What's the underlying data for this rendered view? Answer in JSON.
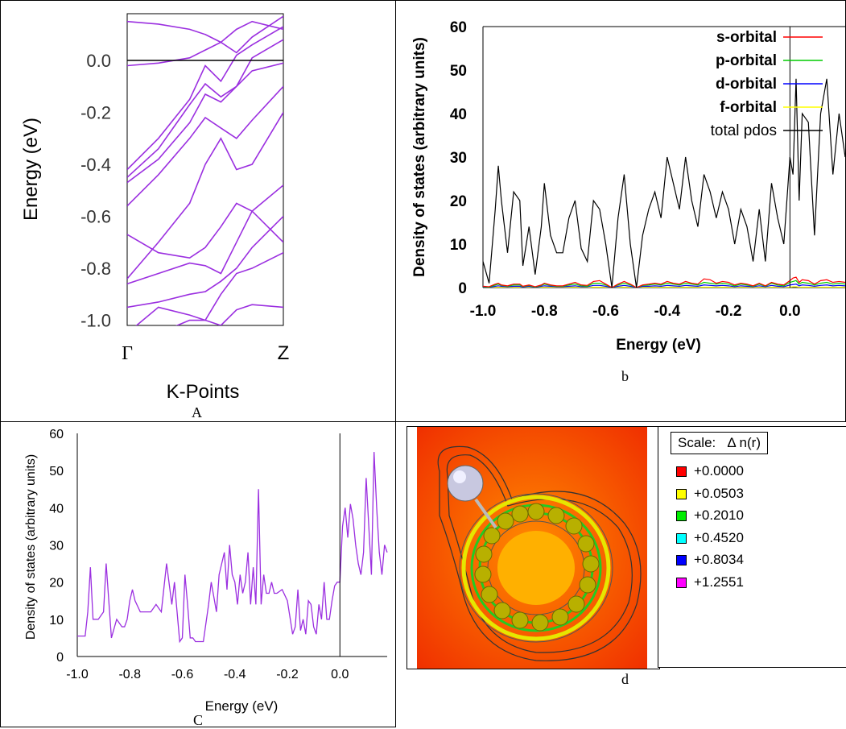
{
  "captions": {
    "a": "A",
    "b": "b",
    "c": "C",
    "d": "d"
  },
  "colors": {
    "band": "#9b2fe0",
    "pdos_c": "#9b2fe0",
    "s": "#ff0000",
    "p": "#00cc00",
    "d": "#0000ff",
    "f": "#ffff00",
    "total": "#000000"
  },
  "chart_data": [
    {
      "id": "band-structure",
      "type": "line",
      "xlabel": "K-Points",
      "ylabel": "Energy (eV)",
      "x_ticks": [
        "Γ",
        "Z"
      ],
      "ylim": [
        -1.02,
        0.18
      ],
      "y_ticks": [
        0.0,
        -0.2,
        -0.4,
        -0.6,
        -0.8,
        -1.0
      ],
      "y_tick_labels": [
        "0.0",
        "-0.2",
        "-0.4",
        "-0.6",
        "-0.8",
        "-1.0"
      ],
      "fermi_level": 0.0,
      "x": [
        0,
        0.2,
        0.4,
        0.5,
        0.6,
        0.7,
        0.8,
        1.0
      ],
      "series": [
        {
          "values": [
            0.15,
            0.14,
            0.12,
            0.1,
            0.07,
            0.03,
            0.09,
            0.17
          ]
        },
        {
          "values": [
            -0.02,
            -0.01,
            0.01,
            0.04,
            0.07,
            0.12,
            0.15,
            0.12
          ]
        },
        {
          "values": [
            -0.42,
            -0.3,
            -0.15,
            -0.02,
            -0.08,
            0.02,
            0.06,
            0.13
          ]
        },
        {
          "values": [
            -0.45,
            -0.34,
            -0.17,
            -0.09,
            -0.14,
            -0.1,
            0.01,
            0.08
          ]
        },
        {
          "values": [
            -0.47,
            -0.38,
            -0.24,
            -0.13,
            -0.16,
            -0.1,
            -0.04,
            -0.01
          ]
        },
        {
          "values": [
            -0.56,
            -0.44,
            -0.3,
            -0.22,
            -0.26,
            -0.3,
            -0.23,
            -0.1
          ]
        },
        {
          "values": [
            -0.84,
            -0.7,
            -0.55,
            -0.4,
            -0.3,
            -0.42,
            -0.4,
            -0.2
          ]
        },
        {
          "values": [
            -0.67,
            -0.74,
            -0.76,
            -0.72,
            -0.64,
            -0.55,
            -0.58,
            -0.7
          ]
        },
        {
          "values": [
            -0.86,
            -0.82,
            -0.78,
            -0.79,
            -0.82,
            -0.7,
            -0.58,
            -0.48
          ]
        },
        {
          "values": [
            -0.95,
            -0.93,
            -0.9,
            -0.89,
            -0.85,
            -0.8,
            -0.72,
            -0.6
          ]
        },
        {
          "values": [
            -1.05,
            -0.95,
            -0.98,
            -1.0,
            -0.9,
            -0.82,
            -0.8,
            -0.74
          ]
        },
        {
          "values": [
            -1.05,
            -1.05,
            -1.0,
            -1.0,
            -1.02,
            -0.96,
            -0.94,
            -0.95
          ]
        }
      ]
    },
    {
      "id": "pdos-orbitals",
      "type": "line",
      "xlabel": "Energy (eV)",
      "ylabel": "Density of states (arbitrary units)",
      "xlim": [
        -1.0,
        0.18
      ],
      "ylim": [
        0,
        60
      ],
      "x_ticks": [
        -1.0,
        -0.8,
        -0.6,
        -0.4,
        -0.2,
        0.0
      ],
      "x_tick_labels": [
        "-1.0",
        "-0.8",
        "-0.6",
        "-0.4",
        "-0.2",
        "0.0"
      ],
      "y_ticks": [
        0,
        10,
        20,
        30,
        40,
        50,
        60
      ],
      "legend": [
        "s-orbital",
        "p-orbital",
        "d-orbital",
        "f-orbital",
        "total pdos"
      ],
      "legend_position": "top-right",
      "fermi_level": 0.0,
      "x": [
        -1.0,
        -0.98,
        -0.96,
        -0.95,
        -0.94,
        -0.92,
        -0.9,
        -0.88,
        -0.87,
        -0.85,
        -0.83,
        -0.81,
        -0.8,
        -0.78,
        -0.76,
        -0.74,
        -0.72,
        -0.7,
        -0.68,
        -0.66,
        -0.64,
        -0.62,
        -0.6,
        -0.58,
        -0.56,
        -0.54,
        -0.52,
        -0.5,
        -0.48,
        -0.46,
        -0.44,
        -0.42,
        -0.4,
        -0.38,
        -0.36,
        -0.34,
        -0.32,
        -0.3,
        -0.28,
        -0.26,
        -0.24,
        -0.22,
        -0.2,
        -0.18,
        -0.16,
        -0.14,
        -0.12,
        -0.1,
        -0.08,
        -0.06,
        -0.04,
        -0.02,
        0.0,
        0.01,
        0.02,
        0.03,
        0.04,
        0.06,
        0.08,
        0.1,
        0.12,
        0.14,
        0.16,
        0.18
      ],
      "series": [
        {
          "name": "total pdos",
          "values": [
            6,
            1,
            18,
            28,
            20,
            8,
            22,
            20,
            5,
            14,
            3,
            14,
            24,
            12,
            8,
            8,
            16,
            20,
            9,
            6,
            20,
            18,
            10,
            0,
            16,
            26,
            10,
            0,
            12,
            18,
            22,
            16,
            30,
            24,
            18,
            30,
            20,
            14,
            26,
            22,
            16,
            22,
            18,
            10,
            18,
            14,
            6,
            18,
            6,
            24,
            16,
            10,
            30,
            26,
            48,
            20,
            40,
            38,
            12,
            40,
            48,
            26,
            40,
            30
          ]
        },
        {
          "name": "s-orbital",
          "values": [
            0.3,
            0.2,
            0.8,
            1,
            0.6,
            0.4,
            0.8,
            0.8,
            0.3,
            0.6,
            0.2,
            0.6,
            1,
            0.6,
            0.4,
            0.4,
            0.8,
            1.2,
            0.6,
            0.5,
            1.4,
            1.6,
            0.8,
            0,
            0.8,
            1.4,
            0.8,
            0,
            0.6,
            0.8,
            1,
            0.8,
            1.4,
            1,
            0.8,
            1.4,
            1,
            0.8,
            2,
            1.8,
            1,
            1.4,
            1.2,
            0.6,
            1,
            0.8,
            0.4,
            1,
            0.4,
            1.2,
            0.8,
            0.6,
            1.6,
            2.2,
            2.4,
            1.2,
            1.8,
            1.6,
            0.8,
            1.6,
            1.8,
            1.2,
            1.4,
            1.2
          ]
        },
        {
          "name": "p-orbital",
          "values": [
            0.2,
            0.1,
            0.6,
            0.8,
            0.5,
            0.3,
            0.6,
            0.6,
            0.2,
            0.5,
            0.1,
            0.5,
            0.8,
            0.5,
            0.3,
            0.3,
            0.6,
            0.8,
            0.4,
            0.3,
            1,
            1,
            0.6,
            0,
            0.6,
            1,
            0.6,
            0,
            0.5,
            0.6,
            0.8,
            0.6,
            1,
            0.8,
            0.6,
            1,
            0.8,
            0.6,
            1.2,
            1,
            0.8,
            1,
            0.8,
            0.4,
            0.8,
            0.6,
            0.3,
            0.8,
            0.3,
            1,
            0.6,
            0.4,
            1.2,
            1.4,
            1.6,
            0.8,
            1.2,
            1,
            0.6,
            1,
            1.2,
            0.8,
            1,
            0.8
          ]
        },
        {
          "name": "d-orbital",
          "values": [
            0.1,
            0.05,
            0.3,
            0.4,
            0.3,
            0.2,
            0.3,
            0.3,
            0.1,
            0.3,
            0.05,
            0.3,
            0.4,
            0.3,
            0.2,
            0.2,
            0.3,
            0.4,
            0.2,
            0.2,
            0.5,
            0.5,
            0.3,
            0,
            0.3,
            0.5,
            0.3,
            0,
            0.3,
            0.3,
            0.4,
            0.3,
            0.5,
            0.4,
            0.3,
            0.5,
            0.4,
            0.3,
            0.6,
            0.5,
            0.4,
            0.5,
            0.4,
            0.2,
            0.4,
            0.3,
            0.2,
            0.4,
            0.2,
            0.5,
            0.3,
            0.2,
            0.6,
            0.7,
            0.8,
            0.4,
            0.6,
            0.5,
            0.3,
            0.5,
            0.6,
            0.4,
            0.5,
            0.4
          ]
        },
        {
          "name": "f-orbital",
          "values": [
            0,
            0,
            0.1,
            0.1,
            0.1,
            0,
            0.1,
            0.1,
            0,
            0.1,
            0,
            0.1,
            0.1,
            0.1,
            0,
            0,
            0.1,
            0.1,
            0.1,
            0,
            0.1,
            0.1,
            0.1,
            0,
            0.1,
            0.1,
            0.1,
            0,
            0.1,
            0.1,
            0.1,
            0.1,
            0.1,
            0.1,
            0.1,
            0.1,
            0.1,
            0.1,
            0.1,
            0.1,
            0.1,
            0.1,
            0.1,
            0,
            0.1,
            0.1,
            0,
            0.1,
            0,
            0.1,
            0.1,
            0,
            0.1,
            0.2,
            0.2,
            0.1,
            0.1,
            0.1,
            0.1,
            0.1,
            0.1,
            0.1,
            0.1,
            0.1
          ]
        }
      ]
    },
    {
      "id": "pdos-total",
      "type": "line",
      "xlabel": "Energy (eV)",
      "ylabel": "Density of states (arbitrary units)",
      "xlim": [
        -1.0,
        0.18
      ],
      "ylim": [
        0,
        60
      ],
      "x_ticks": [
        -1.0,
        -0.8,
        -0.6,
        -0.4,
        -0.2,
        0.0
      ],
      "x_tick_labels": [
        "-1.0",
        "-0.8",
        "-0.6",
        "-0.4",
        "-0.2",
        "0.0"
      ],
      "y_ticks": [
        0,
        10,
        20,
        30,
        40,
        50,
        60
      ],
      "fermi_level": 0.0,
      "x": [
        -1.0,
        -0.97,
        -0.96,
        -0.95,
        -0.94,
        -0.92,
        -0.9,
        -0.89,
        -0.88,
        -0.87,
        -0.85,
        -0.83,
        -0.82,
        -0.81,
        -0.8,
        -0.79,
        -0.78,
        -0.76,
        -0.74,
        -0.72,
        -0.7,
        -0.68,
        -0.66,
        -0.64,
        -0.63,
        -0.62,
        -0.61,
        -0.6,
        -0.59,
        -0.58,
        -0.57,
        -0.56,
        -0.55,
        -0.54,
        -0.52,
        -0.5,
        -0.49,
        -0.48,
        -0.47,
        -0.46,
        -0.44,
        -0.43,
        -0.42,
        -0.41,
        -0.4,
        -0.39,
        -0.38,
        -0.37,
        -0.36,
        -0.35,
        -0.34,
        -0.33,
        -0.32,
        -0.31,
        -0.3,
        -0.29,
        -0.28,
        -0.27,
        -0.26,
        -0.25,
        -0.24,
        -0.22,
        -0.2,
        -0.18,
        -0.17,
        -0.16,
        -0.15,
        -0.14,
        -0.13,
        -0.12,
        -0.11,
        -0.1,
        -0.09,
        -0.08,
        -0.07,
        -0.06,
        -0.05,
        -0.04,
        -0.03,
        -0.02,
        -0.01,
        0.0,
        0.01,
        0.02,
        0.03,
        0.04,
        0.05,
        0.06,
        0.07,
        0.08,
        0.09,
        0.1,
        0.11,
        0.12,
        0.13,
        0.14,
        0.15,
        0.16,
        0.17,
        0.18
      ],
      "values": [
        5.5,
        5.5,
        12,
        24,
        10,
        10,
        12,
        25,
        15,
        5,
        10,
        8,
        8,
        10,
        15,
        18,
        15,
        12,
        12,
        12,
        14,
        12,
        25,
        14,
        20,
        12,
        4,
        5,
        22,
        14,
        5,
        5,
        4,
        4,
        4,
        14,
        20,
        16,
        12,
        22,
        28,
        18,
        30,
        22,
        20,
        14,
        22,
        17,
        20,
        28,
        14,
        24,
        14,
        45,
        14,
        22,
        17,
        17,
        20,
        17,
        17,
        18,
        15,
        6,
        8,
        18,
        7,
        10,
        6,
        15,
        14,
        8,
        6,
        14,
        10,
        20,
        10,
        10,
        15,
        19,
        20,
        20,
        35,
        40,
        32,
        41,
        37,
        30,
        25,
        22,
        28,
        48,
        35,
        22,
        55,
        40,
        28,
        22,
        30,
        28
      ]
    }
  ],
  "scale": {
    "title": "Scale:   Δ n(r)",
    "items": [
      {
        "value": "+0.0000",
        "color": "#ff0000"
      },
      {
        "value": "+0.0503",
        "color": "#ffff00"
      },
      {
        "value": "+0.2010",
        "color": "#00ee00"
      },
      {
        "value": "+0.4520",
        "color": "#00ffff"
      },
      {
        "value": "+0.8034",
        "color": "#0000ff"
      },
      {
        "value": "+1.2551",
        "color": "#ff00ff"
      }
    ]
  }
}
